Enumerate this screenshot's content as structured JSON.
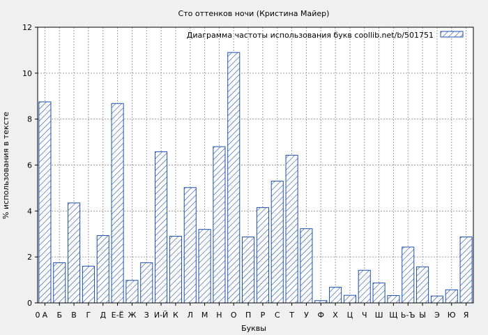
{
  "chart_data": {
    "type": "bar",
    "title": "Сто оттенков ночи (Кристина Майер)",
    "xlabel": "Буквы",
    "ylabel": "% использования в тексте",
    "ylim": [
      0,
      12
    ],
    "yticks": [
      0,
      2,
      4,
      6,
      8,
      10,
      12
    ],
    "x_origin_label": "0",
    "grid": true,
    "legend_position": "top-right",
    "series": [
      {
        "name": "Диаграмма частоты использования букв  coollib.net/b/501751",
        "color": "#1f4fa8",
        "pattern": "diagonal-hatch"
      }
    ],
    "categories": [
      "А",
      "Б",
      "В",
      "Г",
      "Д",
      "Е-Ё",
      "Ж",
      "З",
      "И-Й",
      "К",
      "Л",
      "М",
      "Н",
      "О",
      "П",
      "Р",
      "С",
      "Т",
      "У",
      "Ф",
      "Х",
      "Ц",
      "Ч",
      "Ш",
      "Щ",
      "Ь-Ъ",
      "Ы",
      "Э",
      "Ю",
      "Я"
    ],
    "values": [
      8.75,
      1.75,
      4.35,
      1.6,
      2.93,
      8.68,
      0.98,
      1.75,
      6.58,
      2.9,
      5.02,
      3.2,
      6.8,
      10.9,
      2.87,
      4.15,
      5.3,
      6.43,
      3.23,
      0.1,
      0.68,
      0.33,
      1.42,
      0.87,
      0.32,
      2.43,
      1.57,
      0.3,
      0.57,
      2.87
    ]
  }
}
